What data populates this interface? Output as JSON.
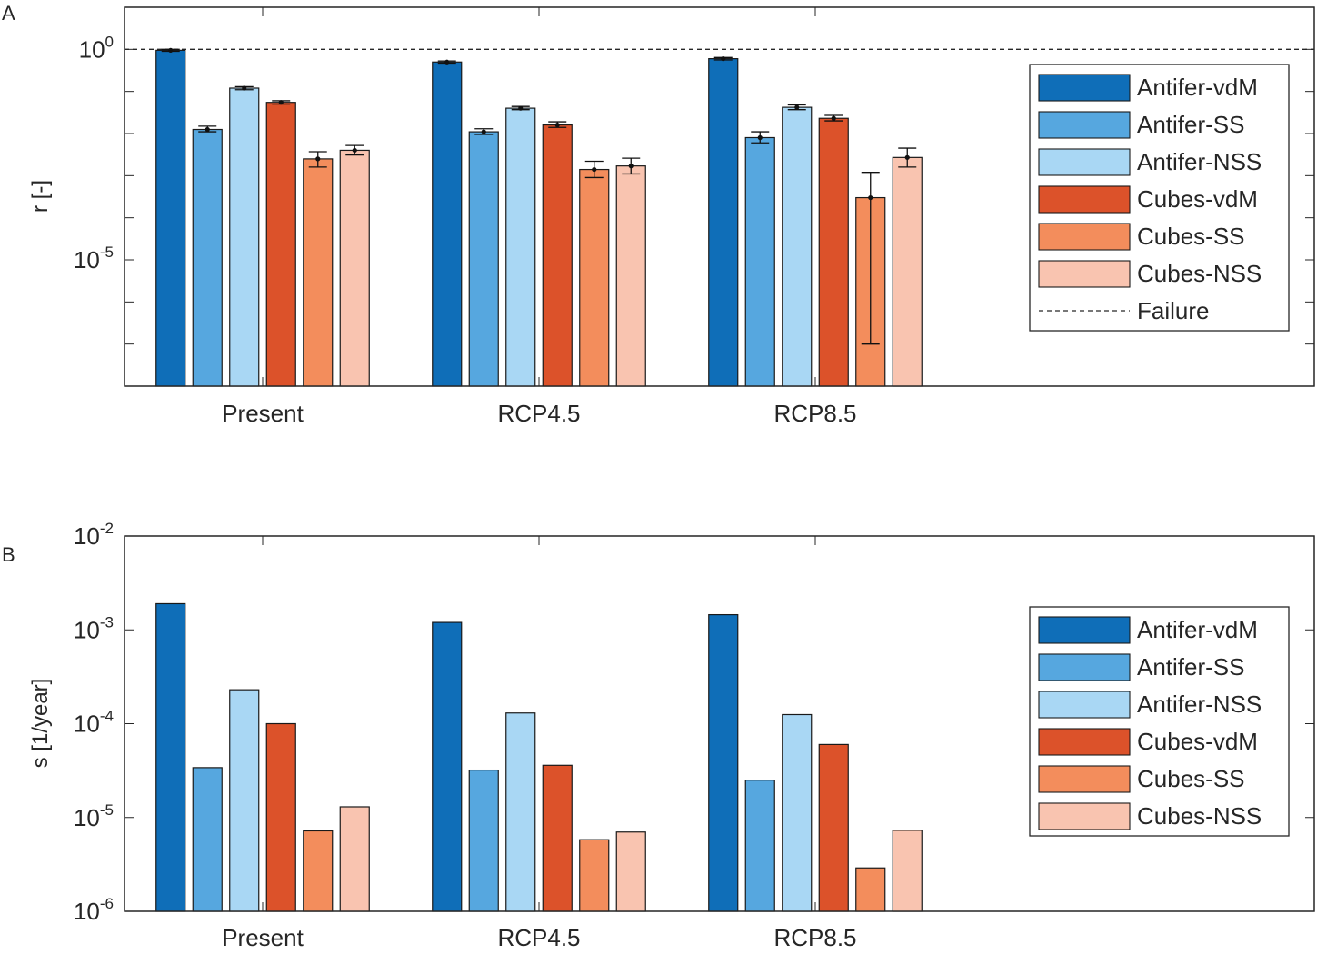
{
  "figure": {
    "panel_labels": [
      "A",
      "B"
    ],
    "colors": {
      "Antifer-vdM": "#0f6eb8",
      "Antifer-SS": "#56a7df",
      "Antifer-NSS": "#a9d7f4",
      "Cubes-vdM": "#dc522a",
      "Cubes-SS": "#f38d5c",
      "Cubes-NSS": "#f9c4b0",
      "axis": "#262626"
    }
  },
  "chart_data": [
    {
      "type": "bar",
      "panel": "A",
      "title": "",
      "xlabel": "",
      "ylabel": "r [-]",
      "yscale": "log",
      "ylim": [
        1e-08,
        10
      ],
      "ytick_labels": [
        {
          "base": "10",
          "exp": "0"
        },
        {
          "base": "10",
          "exp": "-5"
        }
      ],
      "categories": [
        "Present",
        "RCP4.5",
        "RCP8.5"
      ],
      "series": [
        {
          "name": "Antifer-vdM",
          "values": [
            0.95,
            0.5,
            0.6
          ],
          "err_low": [
            0.9,
            0.47,
            0.56
          ],
          "err_high": [
            1.0,
            0.53,
            0.64
          ]
        },
        {
          "name": "Antifer-SS",
          "values": [
            0.0125,
            0.011,
            0.008
          ],
          "err_low": [
            0.011,
            0.0095,
            0.006
          ],
          "err_high": [
            0.015,
            0.013,
            0.011
          ]
        },
        {
          "name": "Antifer-NSS",
          "values": [
            0.12,
            0.04,
            0.042
          ],
          "err_low": [
            0.11,
            0.037,
            0.037
          ],
          "err_high": [
            0.13,
            0.044,
            0.048
          ]
        },
        {
          "name": "Cubes-vdM",
          "values": [
            0.055,
            0.016,
            0.023
          ],
          "err_low": [
            0.05,
            0.014,
            0.02
          ],
          "err_high": [
            0.06,
            0.019,
            0.027
          ]
        },
        {
          "name": "Cubes-SS",
          "values": [
            0.0025,
            0.0014,
            0.0003
          ],
          "err_low": [
            0.0016,
            0.0009,
            1e-07
          ],
          "err_high": [
            0.0037,
            0.0022,
            0.0012
          ]
        },
        {
          "name": "Cubes-NSS",
          "values": [
            0.004,
            0.0017,
            0.0027
          ],
          "err_low": [
            0.0031,
            0.0011,
            0.0016
          ],
          "err_high": [
            0.0052,
            0.0026,
            0.0045
          ]
        }
      ],
      "reference_lines": [
        {
          "name": "Failure",
          "y": 1,
          "style": "dashed"
        }
      ],
      "legend": {
        "position": "right",
        "entries": [
          "Antifer-vdM",
          "Antifer-SS",
          "Antifer-NSS",
          "Cubes-vdM",
          "Cubes-SS",
          "Cubes-NSS",
          "Failure"
        ]
      }
    },
    {
      "type": "bar",
      "panel": "B",
      "title": "",
      "xlabel": "",
      "ylabel": "s [1/year]",
      "yscale": "log",
      "ylim": [
        1e-06,
        0.01
      ],
      "ytick_labels": [
        {
          "base": "10",
          "exp": "-2"
        },
        {
          "base": "10",
          "exp": "-3"
        },
        {
          "base": "10",
          "exp": "-4"
        },
        {
          "base": "10",
          "exp": "-5"
        },
        {
          "base": "10",
          "exp": "-6"
        }
      ],
      "categories": [
        "Present",
        "RCP4.5",
        "RCP8.5"
      ],
      "series": [
        {
          "name": "Antifer-vdM",
          "values": [
            0.0019,
            0.0012,
            0.00145
          ]
        },
        {
          "name": "Antifer-SS",
          "values": [
            3.4e-05,
            3.2e-05,
            2.5e-05
          ]
        },
        {
          "name": "Antifer-NSS",
          "values": [
            0.00023,
            0.00013,
            0.000125
          ]
        },
        {
          "name": "Cubes-vdM",
          "values": [
            0.0001,
            3.6e-05,
            6e-05
          ]
        },
        {
          "name": "Cubes-SS",
          "values": [
            7.2e-06,
            5.8e-06,
            2.9e-06
          ]
        },
        {
          "name": "Cubes-NSS",
          "values": [
            1.3e-05,
            7e-06,
            7.3e-06
          ]
        }
      ],
      "legend": {
        "position": "right",
        "entries": [
          "Antifer-vdM",
          "Antifer-SS",
          "Antifer-NSS",
          "Cubes-vdM",
          "Cubes-SS",
          "Cubes-NSS"
        ]
      }
    }
  ]
}
